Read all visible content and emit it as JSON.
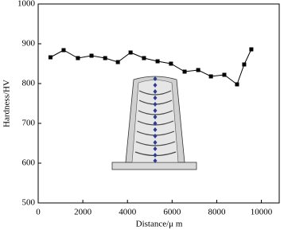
{
  "chart_data": {
    "type": "line",
    "x_label": "Distance/μ m",
    "y_label": "Hardness/HV",
    "x": [
      550,
      1140,
      1780,
      2390,
      3000,
      3570,
      4140,
      4740,
      5350,
      5950,
      6560,
      7170,
      7740,
      8340,
      8910,
      9230,
      9550
    ],
    "series": [
      {
        "color": "#000000",
        "values": [
          866,
          884,
          864,
          870,
          864,
          854,
          878,
          864,
          856,
          850,
          830,
          834,
          818,
          822,
          798,
          848,
          886
        ]
      }
    ],
    "xlim": [
      0,
      10800
    ],
    "ylim": [
      500,
      1000
    ],
    "xticks": [
      0,
      2000,
      4000,
      6000,
      8000,
      10000
    ],
    "yticks": [
      500,
      600,
      700,
      800,
      900,
      1000
    ]
  }
}
